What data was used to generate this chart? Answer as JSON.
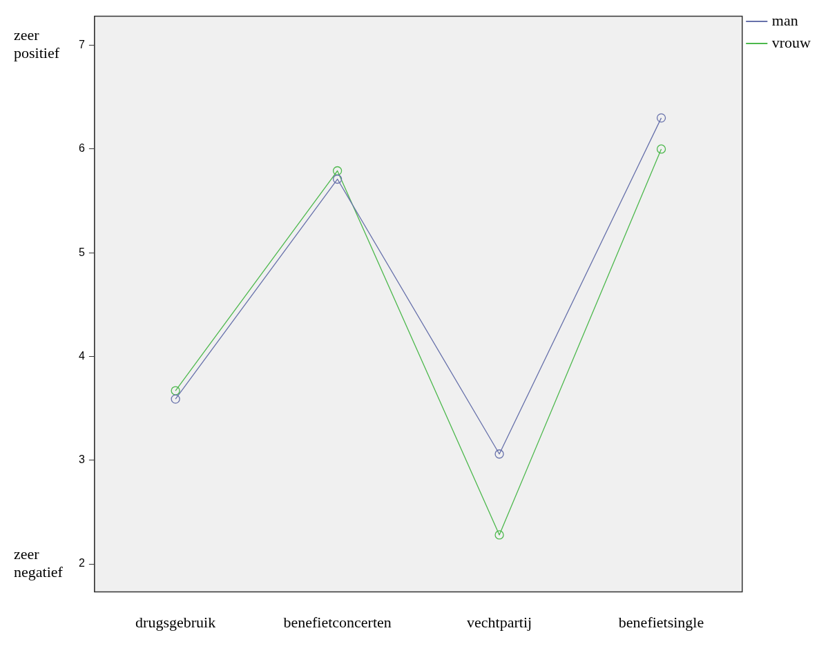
{
  "chart_data": {
    "type": "line",
    "categories": [
      "drugsgebruik",
      "benefietconcerten",
      "vechtpartij",
      "benefietsingle"
    ],
    "series": [
      {
        "name": "man",
        "color": "#6670aa",
        "values": [
          3.59,
          5.71,
          3.06,
          6.3
        ]
      },
      {
        "name": "vrouw",
        "color": "#4cb84c",
        "values": [
          3.67,
          5.79,
          2.28,
          6.0
        ]
      }
    ],
    "ylim": [
      1.73,
      7.28
    ],
    "yticks": [
      2,
      3,
      4,
      5,
      6,
      7
    ],
    "grid": false,
    "legend": "top right",
    "marker": "circle",
    "line_style": "solid",
    "annotations": [
      "zeer positief",
      "zeer negatief"
    ]
  }
}
